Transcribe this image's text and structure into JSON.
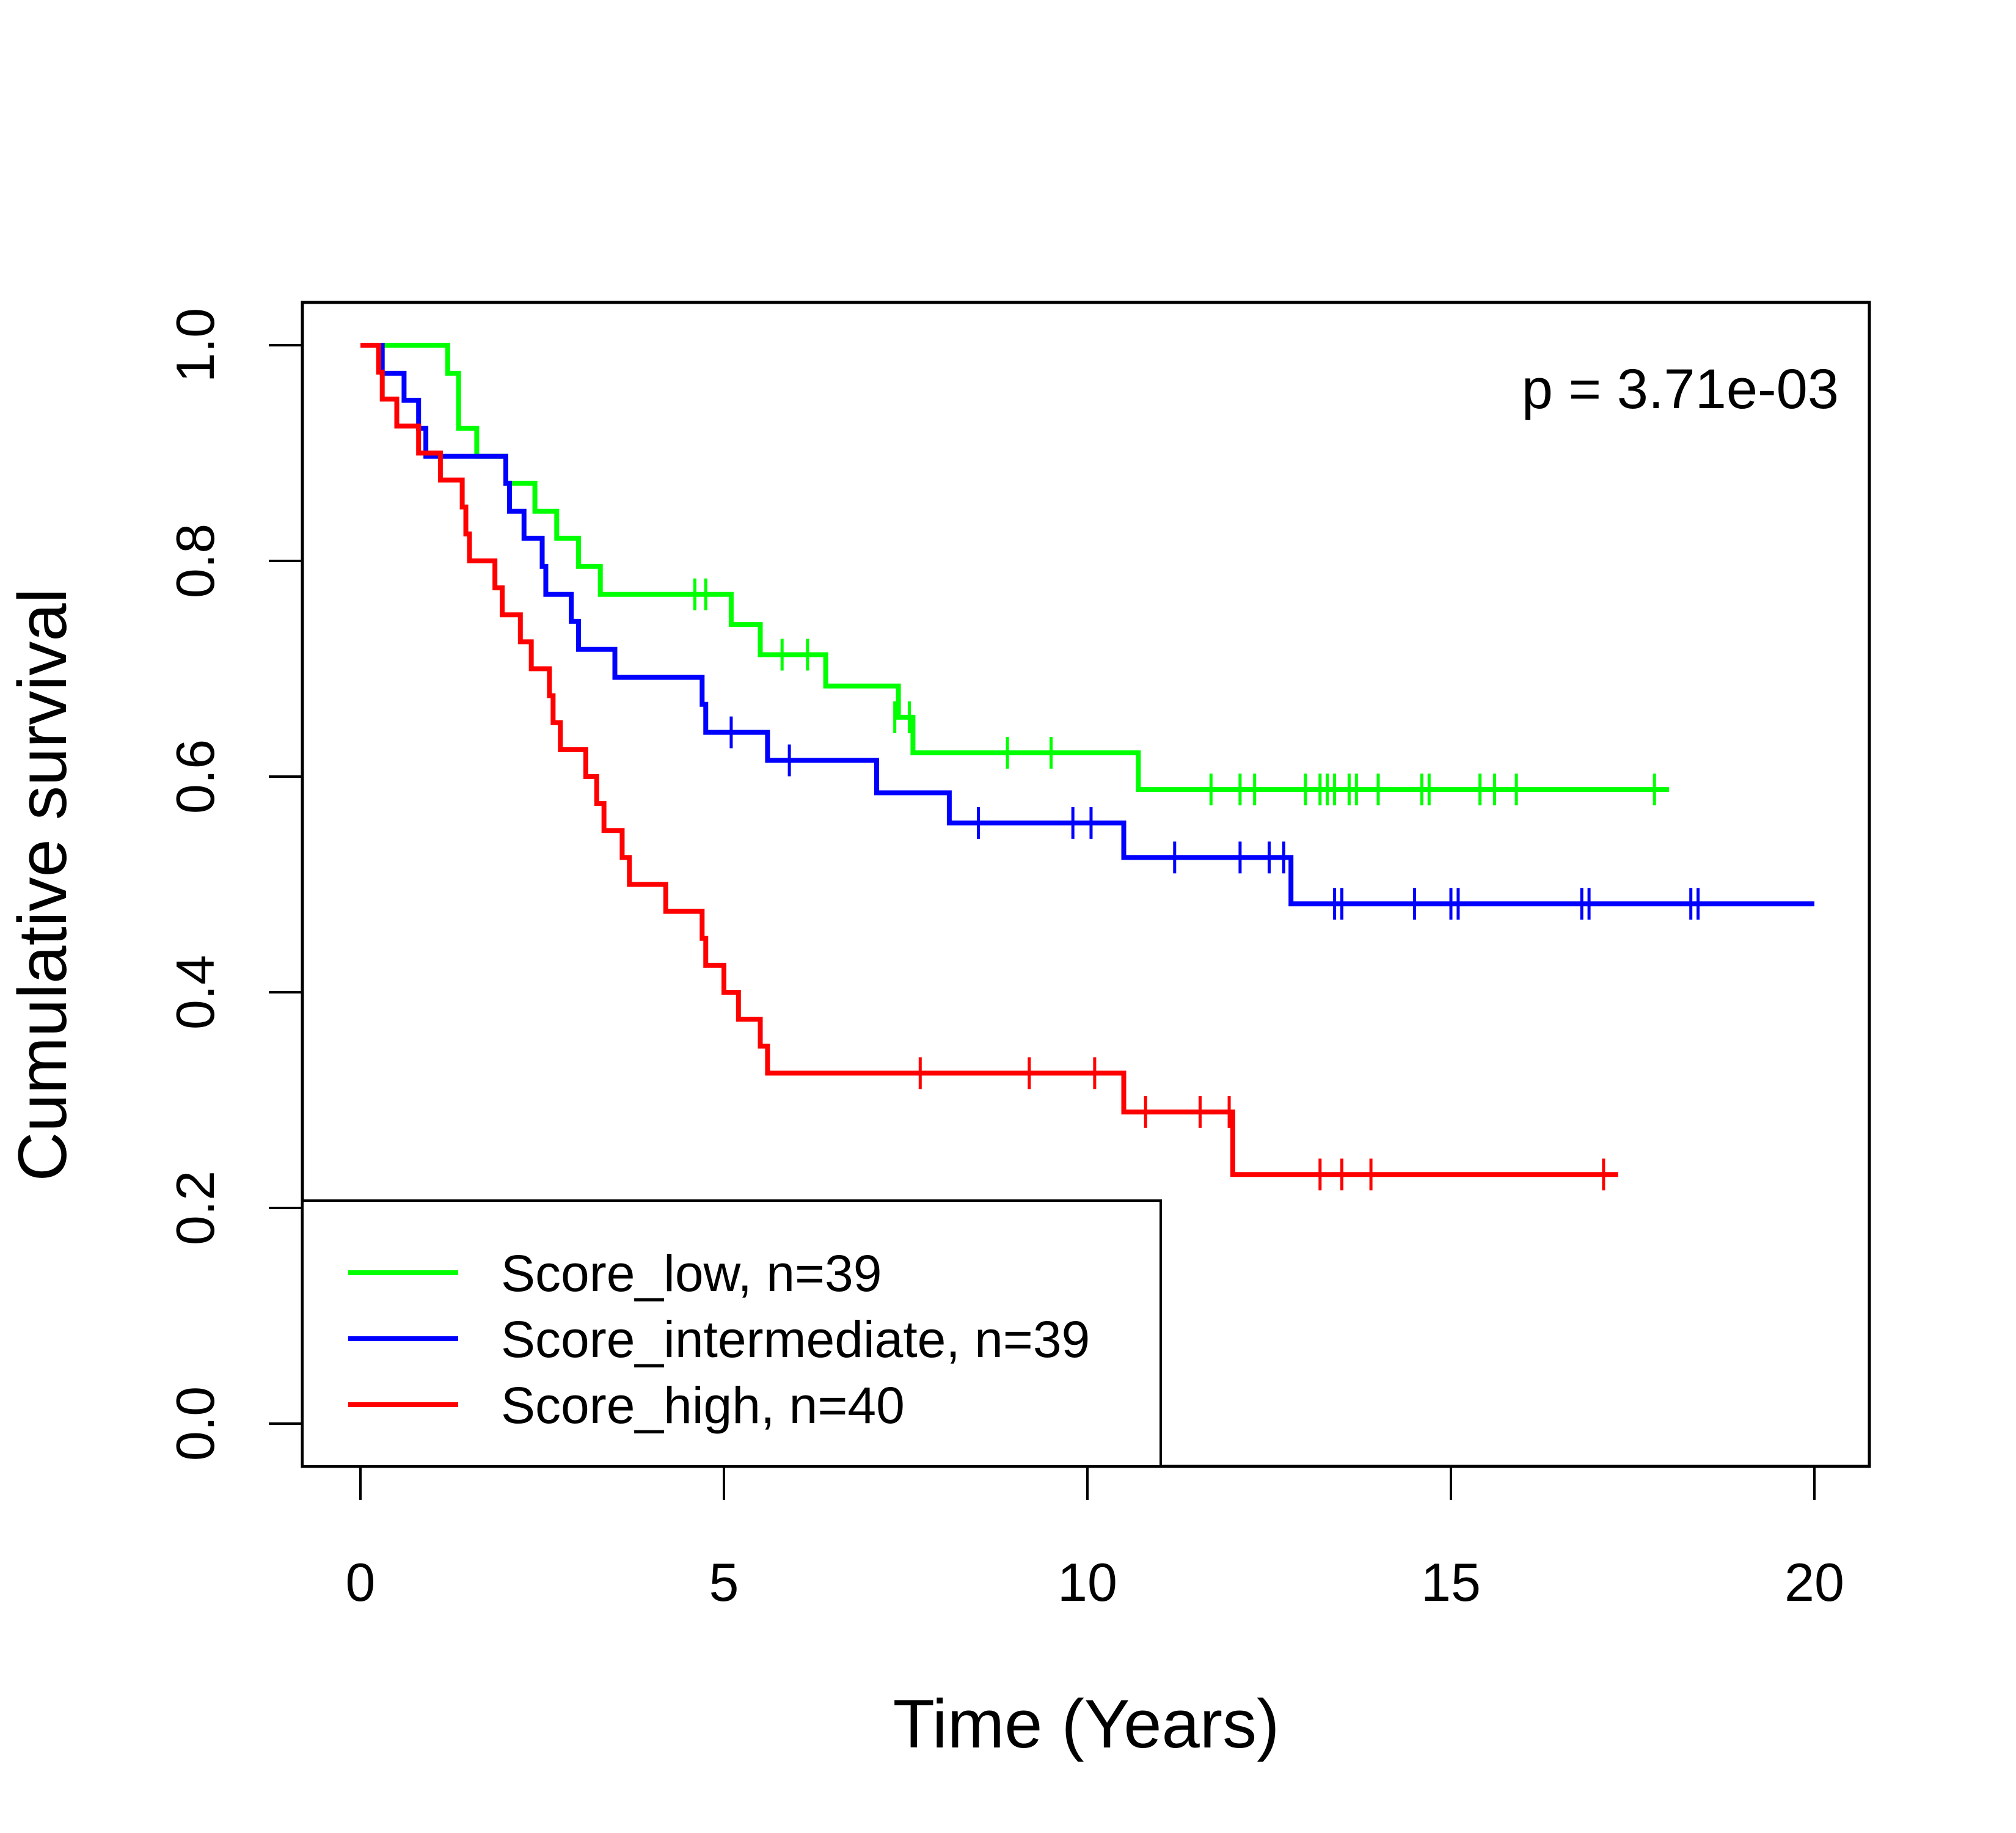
{
  "chart_data": {
    "type": "line",
    "subtype": "kaplan-meier",
    "title": "",
    "xlabel": "Time (Years)",
    "ylabel": "Cumulative survival",
    "xlim": [
      0,
      20
    ],
    "ylim": [
      0,
      1
    ],
    "xticks": [
      0,
      5,
      10,
      15,
      20
    ],
    "yticks": [
      0.0,
      0.2,
      0.4,
      0.6,
      0.8,
      1.0
    ],
    "xtick_labels": [
      "0",
      "5",
      "10",
      "15",
      "20"
    ],
    "ytick_labels": [
      "0.0",
      "0.2",
      "0.4",
      "0.6",
      "0.8",
      "1.0"
    ],
    "grid": false,
    "legend_position": "bottom-left",
    "annotation": "p = 3.71e-03",
    "series": [
      {
        "name": "Score_low, n=39",
        "color": "#00ff00",
        "steps": [
          [
            0,
            1.0
          ],
          [
            1.2,
            0.974
          ],
          [
            1.35,
            0.923
          ],
          [
            1.6,
            0.897
          ],
          [
            2.0,
            0.872
          ],
          [
            2.4,
            0.846
          ],
          [
            2.7,
            0.821
          ],
          [
            3.0,
            0.795
          ],
          [
            3.3,
            0.769
          ],
          [
            5.1,
            0.741
          ],
          [
            5.5,
            0.713
          ],
          [
            6.4,
            0.684
          ],
          [
            7.4,
            0.655
          ],
          [
            7.6,
            0.622
          ],
          [
            10.7,
            0.588
          ]
        ],
        "end": 18.0,
        "censored": [
          [
            4.6,
            0.769
          ],
          [
            4.75,
            0.769
          ],
          [
            5.8,
            0.713
          ],
          [
            6.15,
            0.713
          ],
          [
            7.35,
            0.655
          ],
          [
            7.55,
            0.655
          ],
          [
            8.9,
            0.622
          ],
          [
            9.5,
            0.622
          ],
          [
            11.7,
            0.588
          ],
          [
            12.1,
            0.588
          ],
          [
            12.3,
            0.588
          ],
          [
            13.0,
            0.588
          ],
          [
            13.2,
            0.588
          ],
          [
            13.3,
            0.588
          ],
          [
            13.4,
            0.588
          ],
          [
            13.6,
            0.588
          ],
          [
            13.7,
            0.588
          ],
          [
            14.0,
            0.588
          ],
          [
            14.6,
            0.588
          ],
          [
            14.7,
            0.588
          ],
          [
            15.4,
            0.588
          ],
          [
            15.6,
            0.588
          ],
          [
            15.9,
            0.588
          ],
          [
            17.8,
            0.588
          ]
        ]
      },
      {
        "name": "Score_intermediate, n=39",
        "color": "#0000ff",
        "steps": [
          [
            0,
            1.0
          ],
          [
            0.3,
            0.974
          ],
          [
            0.6,
            0.949
          ],
          [
            0.8,
            0.923
          ],
          [
            0.9,
            0.897
          ],
          [
            2.0,
            0.872
          ],
          [
            2.05,
            0.846
          ],
          [
            2.25,
            0.821
          ],
          [
            2.5,
            0.795
          ],
          [
            2.55,
            0.769
          ],
          [
            2.9,
            0.744
          ],
          [
            3.0,
            0.718
          ],
          [
            3.5,
            0.692
          ],
          [
            4.7,
            0.667
          ],
          [
            4.75,
            0.641
          ],
          [
            5.6,
            0.615
          ],
          [
            7.1,
            0.585
          ],
          [
            8.1,
            0.557
          ],
          [
            10.5,
            0.525
          ],
          [
            12.8,
            0.482
          ]
        ],
        "end": 20.0,
        "censored": [
          [
            5.1,
            0.641
          ],
          [
            5.9,
            0.615
          ],
          [
            8.5,
            0.557
          ],
          [
            9.8,
            0.557
          ],
          [
            10.05,
            0.557
          ],
          [
            11.2,
            0.525
          ],
          [
            12.1,
            0.525
          ],
          [
            12.5,
            0.525
          ],
          [
            12.7,
            0.525
          ],
          [
            13.4,
            0.482
          ],
          [
            13.5,
            0.482
          ],
          [
            14.5,
            0.482
          ],
          [
            15.0,
            0.482
          ],
          [
            15.1,
            0.482
          ],
          [
            16.8,
            0.482
          ],
          [
            16.9,
            0.482
          ],
          [
            18.3,
            0.482
          ],
          [
            18.4,
            0.482
          ]
        ]
      },
      {
        "name": "Score_high, n=40",
        "color": "#ff0000",
        "steps": [
          [
            0,
            1.0
          ],
          [
            0.25,
            0.975
          ],
          [
            0.3,
            0.95
          ],
          [
            0.5,
            0.925
          ],
          [
            0.8,
            0.9
          ],
          [
            1.1,
            0.875
          ],
          [
            1.4,
            0.85
          ],
          [
            1.45,
            0.825
          ],
          [
            1.5,
            0.8
          ],
          [
            1.85,
            0.775
          ],
          [
            1.95,
            0.75
          ],
          [
            2.2,
            0.725
          ],
          [
            2.35,
            0.7
          ],
          [
            2.6,
            0.675
          ],
          [
            2.65,
            0.65
          ],
          [
            2.75,
            0.625
          ],
          [
            3.1,
            0.6
          ],
          [
            3.25,
            0.575
          ],
          [
            3.35,
            0.55
          ],
          [
            3.6,
            0.525
          ],
          [
            3.7,
            0.5
          ],
          [
            4.2,
            0.475
          ],
          [
            4.7,
            0.45
          ],
          [
            4.75,
            0.425
          ],
          [
            5.0,
            0.4
          ],
          [
            5.2,
            0.375
          ],
          [
            5.5,
            0.35
          ],
          [
            5.6,
            0.325
          ],
          [
            10.5,
            0.289
          ],
          [
            12.0,
            0.231
          ]
        ],
        "end": 17.3,
        "censored": [
          [
            7.7,
            0.325
          ],
          [
            9.2,
            0.325
          ],
          [
            10.1,
            0.325
          ],
          [
            10.8,
            0.289
          ],
          [
            11.55,
            0.289
          ],
          [
            11.95,
            0.289
          ],
          [
            13.2,
            0.231
          ],
          [
            13.5,
            0.231
          ],
          [
            13.9,
            0.231
          ],
          [
            17.1,
            0.231
          ]
        ]
      }
    ]
  }
}
